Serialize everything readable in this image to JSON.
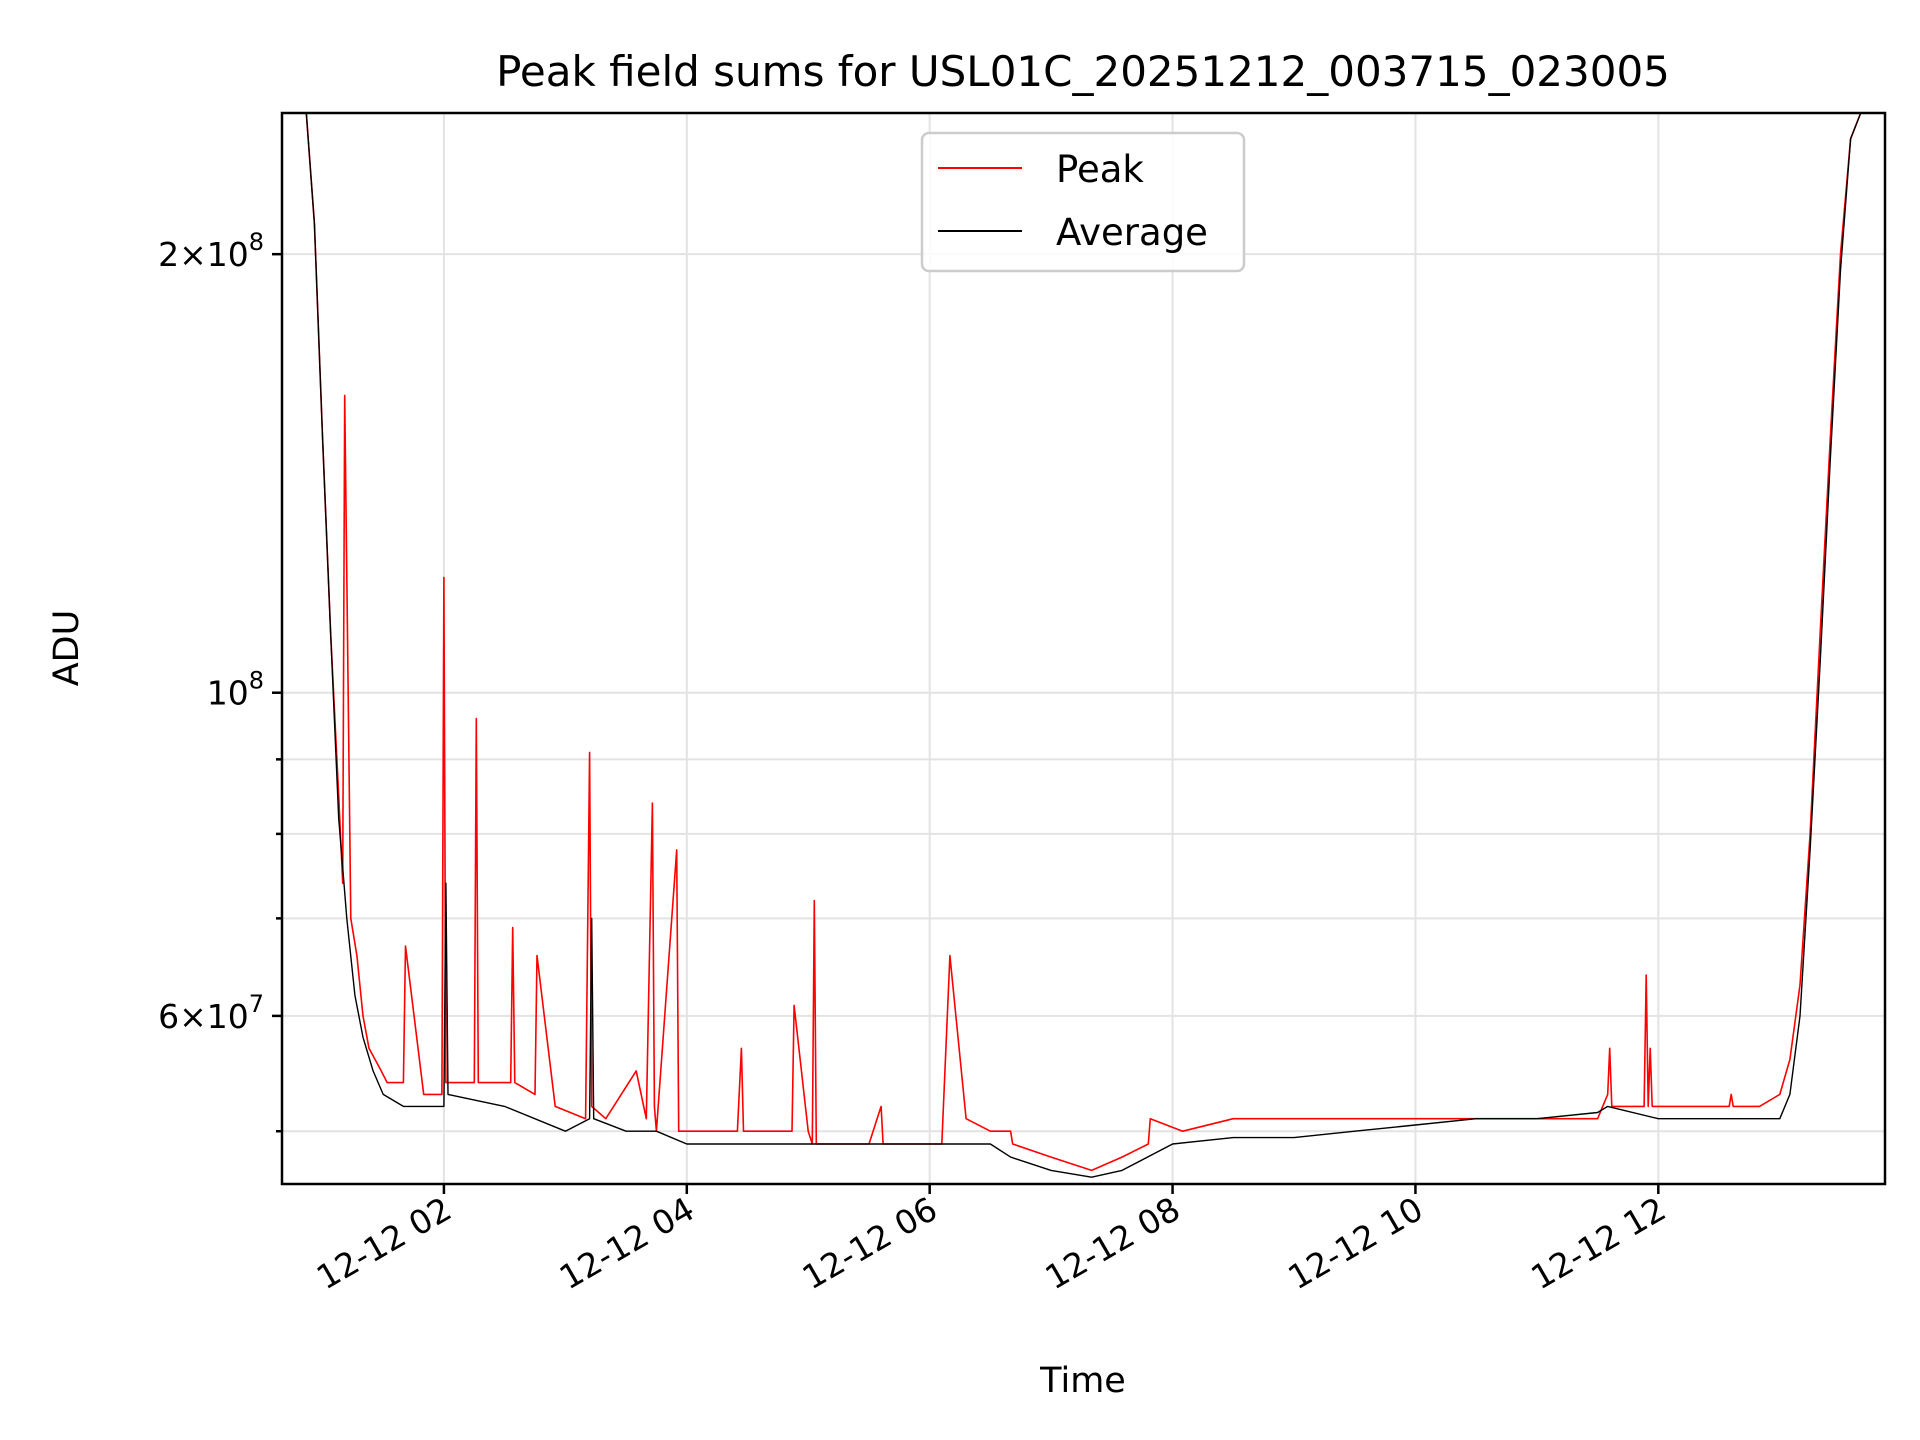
{
  "chart_data": {
    "type": "line",
    "title": "Peak field sums for USL01C_20251212_003715_023005",
    "xlabel": "Time",
    "ylabel": "ADU",
    "yscale": "log",
    "ylim": [
      46000000,
      250000000
    ],
    "xlim": [
      "2025-12-12 00:40",
      "2025-12-12 13:52"
    ],
    "grid": true,
    "legend_position": "top-center",
    "x_ticks": [
      {
        "value": "2025-12-12 02:00",
        "label": "12-12 02"
      },
      {
        "value": "2025-12-12 04:00",
        "label": "12-12 04"
      },
      {
        "value": "2025-12-12 06:00",
        "label": "12-12 06"
      },
      {
        "value": "2025-12-12 08:00",
        "label": "12-12 08"
      },
      {
        "value": "2025-12-12 10:00",
        "label": "12-12 10"
      },
      {
        "value": "2025-12-12 12:00",
        "label": "12-12 12"
      }
    ],
    "y_major_ticks": [
      {
        "value": 60000000,
        "mantissa": "6",
        "exponent": "7"
      },
      {
        "value": 100000000,
        "mantissa": "",
        "exponent": "8"
      },
      {
        "value": 200000000,
        "mantissa": "2",
        "exponent": "8"
      }
    ],
    "y_minor_ticks": [
      50000000,
      70000000,
      80000000,
      90000000
    ],
    "series": [
      {
        "name": "Peak",
        "color": "#ff0000",
        "x": [
          "2025-12-12 00:52",
          "2025-12-12 00:56",
          "2025-12-12 01:00",
          "2025-12-12 01:04",
          "2025-12-12 01:08",
          "2025-12-12 01:10",
          "2025-12-12 01:11",
          "2025-12-12 01:14",
          "2025-12-12 01:17",
          "2025-12-12 01:20",
          "2025-12-12 01:23",
          "2025-12-12 01:26",
          "2025-12-12 01:29",
          "2025-12-12 01:32",
          "2025-12-12 01:40",
          "2025-12-12 01:41",
          "2025-12-12 01:50",
          "2025-12-12 01:59",
          "2025-12-12 02:00",
          "2025-12-12 02:01",
          "2025-12-12 02:09",
          "2025-12-12 02:15",
          "2025-12-12 02:16",
          "2025-12-12 02:17",
          "2025-12-12 02:30",
          "2025-12-12 02:33",
          "2025-12-12 02:34",
          "2025-12-12 02:35",
          "2025-12-12 02:45",
          "2025-12-12 02:46",
          "2025-12-12 02:55",
          "2025-12-12 03:10",
          "2025-12-12 03:12",
          "2025-12-12 03:13",
          "2025-12-12 03:20",
          "2025-12-12 03:35",
          "2025-12-12 03:40",
          "2025-12-12 03:43",
          "2025-12-12 03:44",
          "2025-12-12 03:45",
          "2025-12-12 03:55",
          "2025-12-12 03:56",
          "2025-12-12 04:05",
          "2025-12-12 04:25",
          "2025-12-12 04:27",
          "2025-12-12 04:28",
          "2025-12-12 04:45",
          "2025-12-12 04:52",
          "2025-12-12 04:53",
          "2025-12-12 05:00",
          "2025-12-12 05:02",
          "2025-12-12 05:03",
          "2025-12-12 05:04",
          "2025-12-12 05:30",
          "2025-12-12 05:36",
          "2025-12-12 05:37",
          "2025-12-12 06:00",
          "2025-12-12 06:06",
          "2025-12-12 06:10",
          "2025-12-12 06:18",
          "2025-12-12 06:30",
          "2025-12-12 06:40",
          "2025-12-12 06:41",
          "2025-12-12 07:00",
          "2025-12-12 07:20",
          "2025-12-12 07:35",
          "2025-12-12 07:48",
          "2025-12-12 07:49",
          "2025-12-12 08:05",
          "2025-12-12 08:30",
          "2025-12-12 09:00",
          "2025-12-12 09:30",
          "2025-12-12 10:00",
          "2025-12-12 10:30",
          "2025-12-12 11:00",
          "2025-12-12 11:30",
          "2025-12-12 11:35",
          "2025-12-12 11:36",
          "2025-12-12 11:37",
          "2025-12-12 11:45",
          "2025-12-12 11:53",
          "2025-12-12 11:54",
          "2025-12-12 11:55",
          "2025-12-12 11:56",
          "2025-12-12 11:57",
          "2025-12-12 12:10",
          "2025-12-12 12:35",
          "2025-12-12 12:36",
          "2025-12-12 12:37",
          "2025-12-12 12:50",
          "2025-12-12 13:00",
          "2025-12-12 13:05",
          "2025-12-12 13:10",
          "2025-12-12 13:15",
          "2025-12-12 13:20",
          "2025-12-12 13:25",
          "2025-12-12 13:30",
          "2025-12-12 13:35",
          "2025-12-12 13:40",
          "2025-12-12 13:45"
        ],
        "values": [
          250000000,
          210000000,
          150000000,
          110000000,
          85000000,
          74000000,
          160000000,
          70000000,
          66000000,
          60000000,
          57000000,
          56000000,
          55000000,
          54000000,
          54000000,
          67000000,
          53000000,
          53000000,
          120000000,
          54000000,
          54000000,
          54000000,
          96000000,
          54000000,
          54000000,
          54000000,
          69000000,
          54000000,
          53000000,
          66000000,
          52000000,
          51000000,
          91000000,
          52000000,
          51000000,
          55000000,
          51000000,
          84000000,
          52000000,
          50000000,
          78000000,
          50000000,
          50000000,
          50000000,
          57000000,
          50000000,
          50000000,
          50000000,
          61000000,
          50000000,
          49000000,
          72000000,
          49000000,
          49000000,
          52000000,
          49000000,
          49000000,
          49000000,
          66000000,
          51000000,
          50000000,
          50000000,
          49000000,
          48000000,
          47000000,
          48000000,
          49000000,
          51000000,
          50000000,
          51000000,
          51000000,
          51000000,
          51000000,
          51000000,
          51000000,
          51000000,
          53000000,
          57000000,
          52000000,
          52000000,
          52000000,
          64000000,
          52000000,
          57000000,
          52000000,
          52000000,
          52000000,
          53000000,
          52000000,
          52000000,
          53000000,
          56000000,
          63000000,
          80000000,
          110000000,
          150000000,
          200000000,
          240000000,
          250000000,
          250000000
        ]
      },
      {
        "name": "Average",
        "color": "#000000",
        "x": [
          "2025-12-12 00:52",
          "2025-12-12 00:56",
          "2025-12-12 01:00",
          "2025-12-12 01:04",
          "2025-12-12 01:08",
          "2025-12-12 01:12",
          "2025-12-12 01:16",
          "2025-12-12 01:20",
          "2025-12-12 01:25",
          "2025-12-12 01:30",
          "2025-12-12 01:40",
          "2025-12-12 02:00",
          "2025-12-12 02:01",
          "2025-12-12 02:02",
          "2025-12-12 02:30",
          "2025-12-12 03:00",
          "2025-12-12 03:12",
          "2025-12-12 03:13",
          "2025-12-12 03:14",
          "2025-12-12 03:30",
          "2025-12-12 03:45",
          "2025-12-12 04:00",
          "2025-12-12 04:30",
          "2025-12-12 05:00",
          "2025-12-12 05:30",
          "2025-12-12 06:00",
          "2025-12-12 06:30",
          "2025-12-12 06:40",
          "2025-12-12 07:00",
          "2025-12-12 07:20",
          "2025-12-12 07:35",
          "2025-12-12 08:00",
          "2025-12-12 08:30",
          "2025-12-12 09:00",
          "2025-12-12 09:30",
          "2025-12-12 10:00",
          "2025-12-12 10:30",
          "2025-12-12 11:00",
          "2025-12-12 11:30",
          "2025-12-12 11:35",
          "2025-12-12 12:00",
          "2025-12-12 12:30",
          "2025-12-12 13:00",
          "2025-12-12 13:05",
          "2025-12-12 13:10",
          "2025-12-12 13:15",
          "2025-12-12 13:20",
          "2025-12-12 13:25",
          "2025-12-12 13:30",
          "2025-12-12 13:35",
          "2025-12-12 13:40",
          "2025-12-12 13:45"
        ],
        "values": [
          250000000,
          210000000,
          150000000,
          110000000,
          82000000,
          70000000,
          62000000,
          58000000,
          55000000,
          53000000,
          52000000,
          52000000,
          74000000,
          53000000,
          52000000,
          50000000,
          51000000,
          70000000,
          51000000,
          50000000,
          50000000,
          49000000,
          49000000,
          49000000,
          49000000,
          49000000,
          49000000,
          48000000,
          47000000,
          46500000,
          47000000,
          49000000,
          49500000,
          49500000,
          50000000,
          50500000,
          51000000,
          51000000,
          51500000,
          52000000,
          51000000,
          51000000,
          51000000,
          53000000,
          60000000,
          78000000,
          105000000,
          145000000,
          195000000,
          240000000,
          250000000,
          250000000
        ]
      }
    ]
  }
}
